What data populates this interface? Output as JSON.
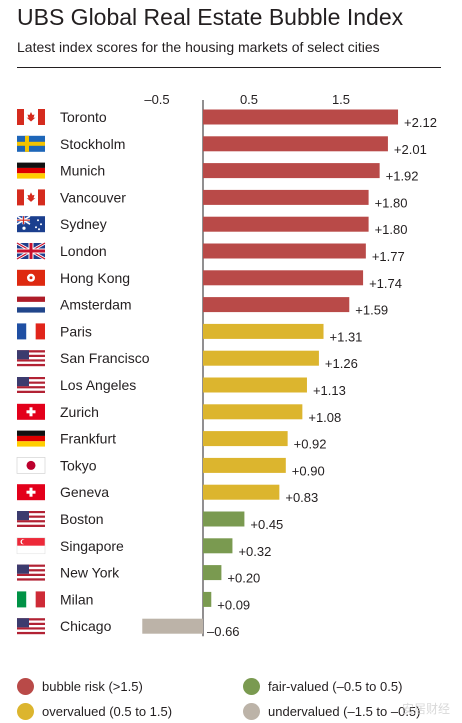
{
  "header": {
    "title": "UBS Global Real Estate Bubble Index",
    "subtitle": "Latest index scores for the housing markets of select cities"
  },
  "chart_data": {
    "type": "bar",
    "orientation": "horizontal",
    "title": "UBS Global Real Estate Bubble Index",
    "subtitle": "Latest index scores for the housing markets of select cities",
    "axis_ticks": [
      "–0.5",
      "0.5",
      "1.5"
    ],
    "axis_tick_values": [
      -0.5,
      0.5,
      1.5
    ],
    "xlim": [
      -0.63,
      2.3
    ],
    "grid": false,
    "categories": [
      "Toronto",
      "Stockholm",
      "Munich",
      "Vancouver",
      "Sydney",
      "London",
      "Hong Kong",
      "Amsterdam",
      "Paris",
      "San Francisco",
      "Los Angeles",
      "Zurich",
      "Frankfurt",
      "Tokyo",
      "Geneva",
      "Boston",
      "Singapore",
      "New York",
      "Milan",
      "Chicago"
    ],
    "values": [
      2.12,
      2.01,
      1.92,
      1.8,
      1.8,
      1.77,
      1.74,
      1.59,
      1.31,
      1.26,
      1.13,
      1.08,
      0.92,
      0.9,
      0.83,
      0.45,
      0.32,
      0.2,
      0.09,
      -0.66
    ],
    "value_labels": [
      "+2.12",
      "+2.01",
      "+1.92",
      "+1.80",
      "+1.80",
      "+1.77",
      "+1.74",
      "+1.59",
      "+1.31",
      "+1.26",
      "+1.13",
      "+1.08",
      "+0.92",
      "+0.90",
      "+0.83",
      "+0.45",
      "+0.32",
      "+0.20",
      "+0.09",
      "–0.66"
    ],
    "categories_class": [
      "bubble",
      "bubble",
      "bubble",
      "bubble",
      "bubble",
      "bubble",
      "bubble",
      "bubble",
      "over",
      "over",
      "over",
      "over",
      "over",
      "over",
      "over",
      "fair",
      "fair",
      "fair",
      "fair",
      "under"
    ],
    "flags": [
      "canada-flag-icon",
      "sweden-flag-icon",
      "germany-flag-icon",
      "canada-flag-icon",
      "australia-flag-icon",
      "uk-flag-icon",
      "hong-kong-flag-icon",
      "netherlands-flag-icon",
      "france-flag-icon",
      "usa-flag-icon",
      "usa-flag-icon",
      "switzerland-flag-icon",
      "germany-flag-icon",
      "japan-flag-icon",
      "switzerland-flag-icon",
      "usa-flag-icon",
      "singapore-flag-icon",
      "usa-flag-icon",
      "italy-flag-icon",
      "usa-flag-icon"
    ],
    "legend_placement": "bottom"
  },
  "legend": [
    {
      "key": "bubble",
      "label": "bubble risk (>1.5)",
      "color": "#b94a48"
    },
    {
      "key": "fair",
      "label": "fair-valued (–0.5 to 0.5)",
      "color": "#7a9a50"
    },
    {
      "key": "over",
      "label": "overvalued (0.5 to 1.5)",
      "color": "#dcb52e"
    },
    {
      "key": "under",
      "label": "undervalued (–1.5 to –0.5)",
      "color": "#bcb3a8"
    }
  ],
  "colors": {
    "bubble": "#b94a48",
    "over": "#dcb52e",
    "fair": "#7a9a50",
    "under": "#bcb3a8",
    "axis": "#231f20"
  },
  "watermark": "安居财经"
}
